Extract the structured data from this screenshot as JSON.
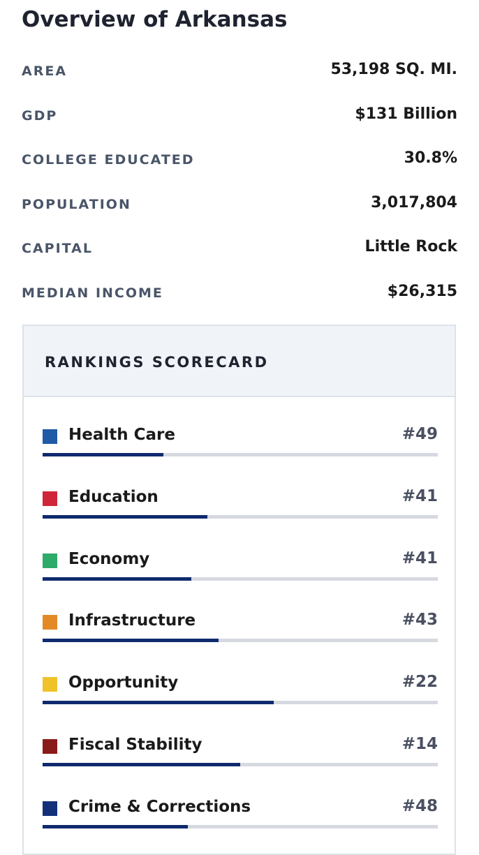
{
  "header": {
    "title": "Overview of Arkansas"
  },
  "facts": [
    {
      "label": "AREA",
      "value": "53,198 SQ. MI."
    },
    {
      "label": "GDP",
      "value": "$131 Billion"
    },
    {
      "label": "COLLEGE EDUCATED",
      "value": "30.8%"
    },
    {
      "label": "POPULATION",
      "value": "3,017,804"
    },
    {
      "label": "CAPITAL",
      "value": "Little Rock"
    },
    {
      "label": "MEDIAN INCOME",
      "value": "$26,315"
    }
  ],
  "scorecard": {
    "title": "RANKINGS SCORECARD",
    "items": [
      {
        "label": "Health Care",
        "rank": "#49",
        "color": "#1f5aa6",
        "bar": 30.5
      },
      {
        "label": "Education",
        "rank": "#41",
        "color": "#d0263a",
        "bar": 41.7
      },
      {
        "label": "Economy",
        "rank": "#41",
        "color": "#2eaa6a",
        "bar": 37.6
      },
      {
        "label": "Infrastructure",
        "rank": "#43",
        "color": "#e38a26",
        "bar": 44.5
      },
      {
        "label": "Opportunity",
        "rank": "#22",
        "color": "#f0c22a",
        "bar": 58.5
      },
      {
        "label": "Fiscal Stability",
        "rank": "#14",
        "color": "#8b1a1a",
        "bar": 50
      },
      {
        "label": "Crime & Corrections",
        "rank": "#48",
        "color": "#13307a",
        "bar": 36.7
      }
    ]
  }
}
